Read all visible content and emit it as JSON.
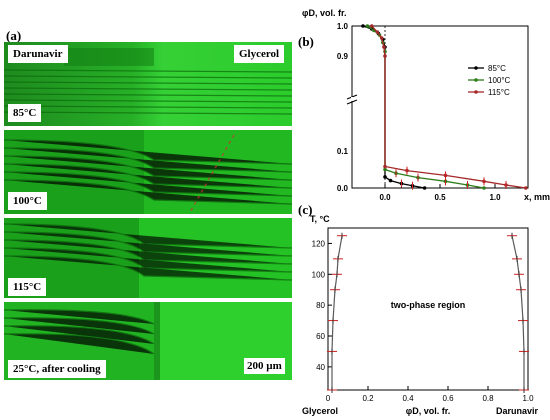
{
  "panels": {
    "a": {
      "letter": "(a)",
      "left_label": "Darunavir",
      "right_label": "Glycerol",
      "images": [
        {
          "label": "85°C"
        },
        {
          "label": "100°C"
        },
        {
          "label": "115°C"
        },
        {
          "label": "25°C, after cooling"
        }
      ],
      "scale_bar": "200 µm"
    },
    "b": {
      "letter": "(b)"
    },
    "c": {
      "letter": "(c)",
      "region_label": "two-phase region"
    }
  },
  "colors": {
    "micro_green": "#22c322",
    "micro_dark": "#0a5a0a",
    "s85": "#000000",
    "s100": "#2e7d1b",
    "s115": "#a52a2a",
    "curve": "#5a5a5a",
    "errbar": "#d02020"
  },
  "chart_data": [
    {
      "type": "line",
      "panel": "b",
      "ylabel": "φD, vol. fr.",
      "xlabel": "x, mm",
      "xlim": [
        -0.3,
        1.3
      ],
      "ylim_lower": [
        0,
        0.2
      ],
      "ylim_upper": [
        0.8,
        1.0
      ],
      "x_ticks": [
        "0.0",
        "0.5",
        "1.0"
      ],
      "y_ticks_lower": [
        "0.0",
        "0.1"
      ],
      "y_ticks_upper": [
        "0.9",
        "1.0"
      ],
      "legend_position": "right",
      "series": [
        {
          "name": "85°C",
          "color_key": "s85",
          "points": [
            [
              -0.2,
              1.0
            ],
            [
              -0.12,
              0.99
            ],
            [
              -0.06,
              0.975
            ],
            [
              -0.02,
              0.955
            ],
            [
              0.0,
              0.93
            ],
            [
              0.0,
              0.03
            ],
            [
              0.05,
              0.02
            ],
            [
              0.15,
              0.012
            ],
            [
              0.25,
              0.006
            ],
            [
              0.36,
              0.0
            ]
          ]
        },
        {
          "name": "100°C",
          "color_key": "s100",
          "points": [
            [
              -0.16,
              1.0
            ],
            [
              -0.1,
              0.985
            ],
            [
              -0.05,
              0.97
            ],
            [
              -0.02,
              0.945
            ],
            [
              0.0,
              0.915
            ],
            [
              0.0,
              0.05
            ],
            [
              0.1,
              0.04
            ],
            [
              0.3,
              0.028
            ],
            [
              0.55,
              0.018
            ],
            [
              0.75,
              0.008
            ],
            [
              0.9,
              0.0
            ]
          ]
        },
        {
          "name": "115°C",
          "color_key": "s115",
          "points": [
            [
              -0.12,
              1.0
            ],
            [
              -0.07,
              0.98
            ],
            [
              -0.03,
              0.96
            ],
            [
              -0.01,
              0.93
            ],
            [
              0.0,
              0.9
            ],
            [
              0.0,
              0.058
            ],
            [
              0.2,
              0.047
            ],
            [
              0.55,
              0.034
            ],
            [
              0.9,
              0.018
            ],
            [
              1.1,
              0.008
            ],
            [
              1.28,
              0.0
            ]
          ]
        }
      ]
    },
    {
      "type": "line",
      "panel": "c",
      "ylabel": "T, °C",
      "xlabel": "φD, vol. fr.",
      "x_left_label": "Glycerol",
      "x_right_label": "Darunavir",
      "xlim": [
        0,
        1
      ],
      "ylim": [
        25,
        130
      ],
      "x_ticks": [
        "0",
        "0.2",
        "0.4",
        "0.6",
        "0.8",
        "1.0"
      ],
      "y_ticks": [
        "40",
        "60",
        "80",
        "100",
        "120"
      ],
      "series": [
        {
          "name": "glycerol-rich",
          "color_key": "curve",
          "points": [
            [
              0.02,
              25
            ],
            [
              0.02,
              50
            ],
            [
              0.025,
              70
            ],
            [
              0.035,
              90
            ],
            [
              0.045,
              100
            ],
            [
              0.05,
              110
            ],
            [
              0.07,
              125
            ]
          ]
        },
        {
          "name": "darunavir-rich",
          "color_key": "curve",
          "points": [
            [
              0.98,
              25
            ],
            [
              0.98,
              50
            ],
            [
              0.975,
              70
            ],
            [
              0.965,
              90
            ],
            [
              0.955,
              100
            ],
            [
              0.945,
              110
            ],
            [
              0.92,
              125
            ]
          ]
        }
      ]
    }
  ]
}
